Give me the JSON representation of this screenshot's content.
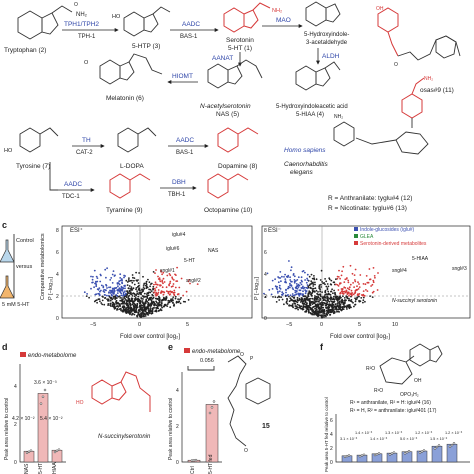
{
  "pathway": {
    "compounds": {
      "tryptophan": "Tryptophan (2)",
      "htp": "5-HTP (3)",
      "serotonin_a": "Serotonin",
      "serotonin_b": "5-HT (1)",
      "hiald_a": "5-Hydroxyindole-",
      "hiald_b": "3-acetaldehyde",
      "melatonin": "Melatonin (6)",
      "nas_a": "N-acetylserotonin",
      "nas_b": "NAS (5)",
      "hiaa_a": "5-Hydroxyindoleacetic acid",
      "hiaa_b": "5-HIAA (4)",
      "tyrosine": "Tyrosine (7)",
      "ldopa": "L-DOPA",
      "dopamine": "Dopamine (8)",
      "tyramine": "Tyramine (9)",
      "octopamine": "Octopamine (10)",
      "osas": "osas#9 (11)"
    },
    "enzymes": {
      "tph_a": "TPH1/TPH2",
      "tph_b": "TPH-1",
      "aadc1_a": "AADC",
      "aadc1_b": "BAS-1",
      "mao": "MAO",
      "aanat": "AANAT",
      "aldh": "ALDH",
      "hiomt": "HIOMT",
      "th_a": "TH",
      "th_b": "CAT-2",
      "aadc2_a": "AADC",
      "aadc2_b": "BAS-1",
      "aadc3_a": "AADC",
      "aadc3_b": "TDC-1",
      "dbh_a": "DBH",
      "dbh_b": "TBH-1"
    },
    "legend": {
      "human": "Homo sapiens",
      "worm_a": "Caenorhabditis",
      "worm_b": "elegans"
    },
    "tyglu": {
      "r1": "R = Anthranilate: tyglu#4 (12)",
      "r2": "R = Nicotinate: tyglu#6 (13)"
    }
  },
  "panel_c": {
    "letter": "c",
    "control": "Control",
    "versus": "versus",
    "treatment": "5 mM 5-HT",
    "side": "Comparative metabolomics"
  },
  "volcano_left": {
    "mode": "ESI⁺",
    "xlabel": "Fold over control [log₂]",
    "ylabel": "P [−log₁₀]",
    "yticks": [
      "0",
      "2",
      "4",
      "6",
      "8"
    ],
    "xticks": [
      "−5",
      "0",
      "5"
    ],
    "labels": {
      "a": "iglu#4",
      "b": "iglu#6",
      "c": "NAS",
      "d": "5-HT",
      "e": "sngl#1",
      "f": "sngl#2"
    }
  },
  "volcano_right": {
    "mode": "ESI⁻",
    "xlabel": "Fold over control [log₂]",
    "ylabel": "P [−log₁₀]",
    "yticks": [
      "0",
      "2",
      "4",
      "6",
      "8"
    ],
    "xticks": [
      "−5",
      "0",
      "5",
      "10"
    ],
    "legend": [
      {
        "label": "Indole-glucosides (iglu#)",
        "color": "#3a4fb0"
      },
      {
        "label": "GLEA",
        "color": "#2a8a3a"
      },
      {
        "label": "Serotonin-derived metabolites",
        "color": "#d63a3a"
      }
    ],
    "labels": {
      "a": "5-HIAA",
      "b": "sngl#3",
      "c": "sngl#4",
      "d": "N-succinyl serotonin"
    }
  },
  "panel_d": {
    "letter": "d",
    "title": "endo-metabolome",
    "ylabel": "Peak area relative to control",
    "pvals": [
      "3.6 × 10⁻³",
      "4.2 × 10⁻²",
      "5.4 × 10⁻²"
    ],
    "yticks": [
      "0",
      "2",
      "4"
    ],
    "xlabels": [
      "NAS",
      "5-HT",
      "HIAA"
    ],
    "compound": "N-succinylserotonin",
    "values": [
      0.55,
      3.5,
      0.6
    ],
    "ymax": 5
  },
  "panel_e": {
    "letter": "e",
    "title": "endo-metabolome",
    "pval": "0.056",
    "ylabel": "Peak area relative to control",
    "yticks": [
      "0",
      "2",
      "4"
    ],
    "xlabels": [
      "Ctrl",
      "5-HT fed"
    ],
    "values": [
      0.1,
      3.2
    ],
    "ymax": 5,
    "compound_num": "15"
  },
  "panel_f": {
    "letter": "f",
    "ylabel": "Peak area 5-HT fed relative to control",
    "r_lines": [
      "R¹ = anthranilate, R² = H: iglu#4 (16)",
      "R¹ = H, R² = anthranilate: iglu#401 (17)"
    ],
    "pvals": [
      "3.1 × 10⁻³",
      "1.4 × 10⁻³",
      "1.4 × 10⁻³",
      "1.3 × 10⁻³",
      "5.0 × 10⁻³",
      "1.2 × 10⁻³",
      "1.5 × 10⁻²",
      "1.2 × 10⁻³"
    ],
    "yticks": [
      "0",
      "2",
      "4",
      "6"
    ],
    "values": [
      0.9,
      1.0,
      1.2,
      1.3,
      1.5,
      1.6,
      2.3,
      2.6
    ],
    "ymax": 7
  }
}
